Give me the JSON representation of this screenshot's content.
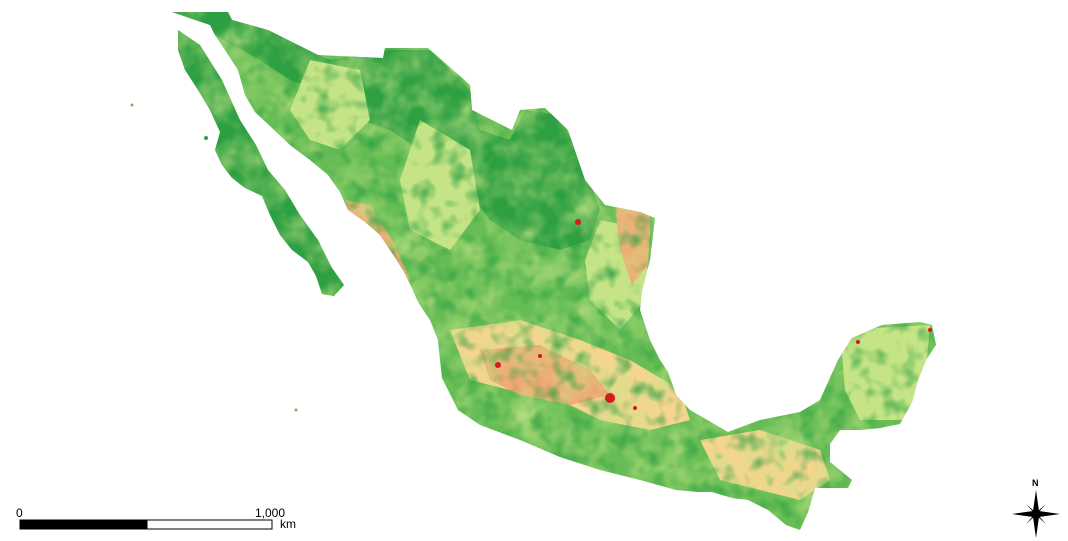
{
  "map": {
    "palette": {
      "dense_vegetation": "#2ea043",
      "moderate_vegetation": "#66bd55",
      "light_vegetation": "#c5e486",
      "sparse": "#f6d58e",
      "bare": "#f2a874",
      "urban": "#d7191c"
    }
  },
  "scale_bar": {
    "start_label": "0",
    "end_label": "1,000",
    "unit_label": "km"
  },
  "north_arrow": {
    "label": "N",
    "icon": "compass-star-icon"
  }
}
